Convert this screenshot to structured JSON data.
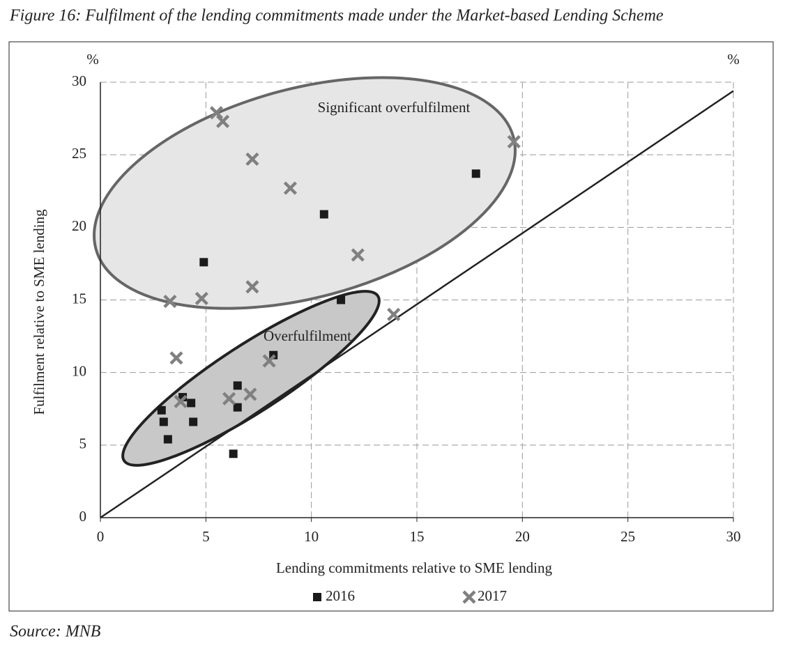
{
  "chart_data": {
    "type": "scatter",
    "title": "Figure 16: Fulfilment of the lending commitments made under the Market-based Lending Scheme",
    "source": "Source: MNB",
    "x_label": "Lending commitments relative to SME lending",
    "y_label": "Fulfilment relative to SME lending",
    "y_unit": "%",
    "y2_unit": "%",
    "annotations": [
      "Significant overfulfilment",
      "Overfulfilment"
    ],
    "xlim": [
      0,
      30
    ],
    "xticks": [
      0,
      5,
      10,
      15,
      20,
      25,
      30
    ],
    "ylim": [
      0,
      30
    ],
    "yticks": [
      0,
      5,
      10,
      15,
      20,
      25,
      30
    ],
    "grid": true,
    "diagonal": {
      "x": [
        0,
        30
      ],
      "y": [
        0,
        29.4
      ]
    },
    "series": [
      {
        "name": "2016",
        "color": "#1a1a1a",
        "marker": "square",
        "x": [
          4.9,
          10.6,
          17.8,
          11.4,
          8.2,
          6.5,
          6.5,
          3.9,
          4.3,
          2.9,
          3.0,
          4.4,
          3.2,
          6.3
        ],
        "values": [
          17.6,
          20.9,
          23.7,
          15.0,
          11.2,
          9.1,
          7.6,
          8.3,
          7.9,
          7.4,
          6.6,
          6.6,
          5.4,
          4.4
        ]
      },
      {
        "name": "2017",
        "color": "#808080",
        "marker": "cross",
        "x": [
          5.5,
          5.8,
          7.2,
          9.0,
          19.6,
          12.2,
          7.2,
          3.3,
          4.8,
          13.9,
          3.6,
          8.0,
          7.1,
          6.1,
          3.8
        ],
        "values": [
          27.9,
          27.3,
          24.7,
          22.7,
          25.9,
          18.1,
          15.9,
          14.9,
          15.1,
          14.0,
          11.0,
          10.8,
          8.5,
          8.2,
          8.0
        ]
      }
    ]
  }
}
